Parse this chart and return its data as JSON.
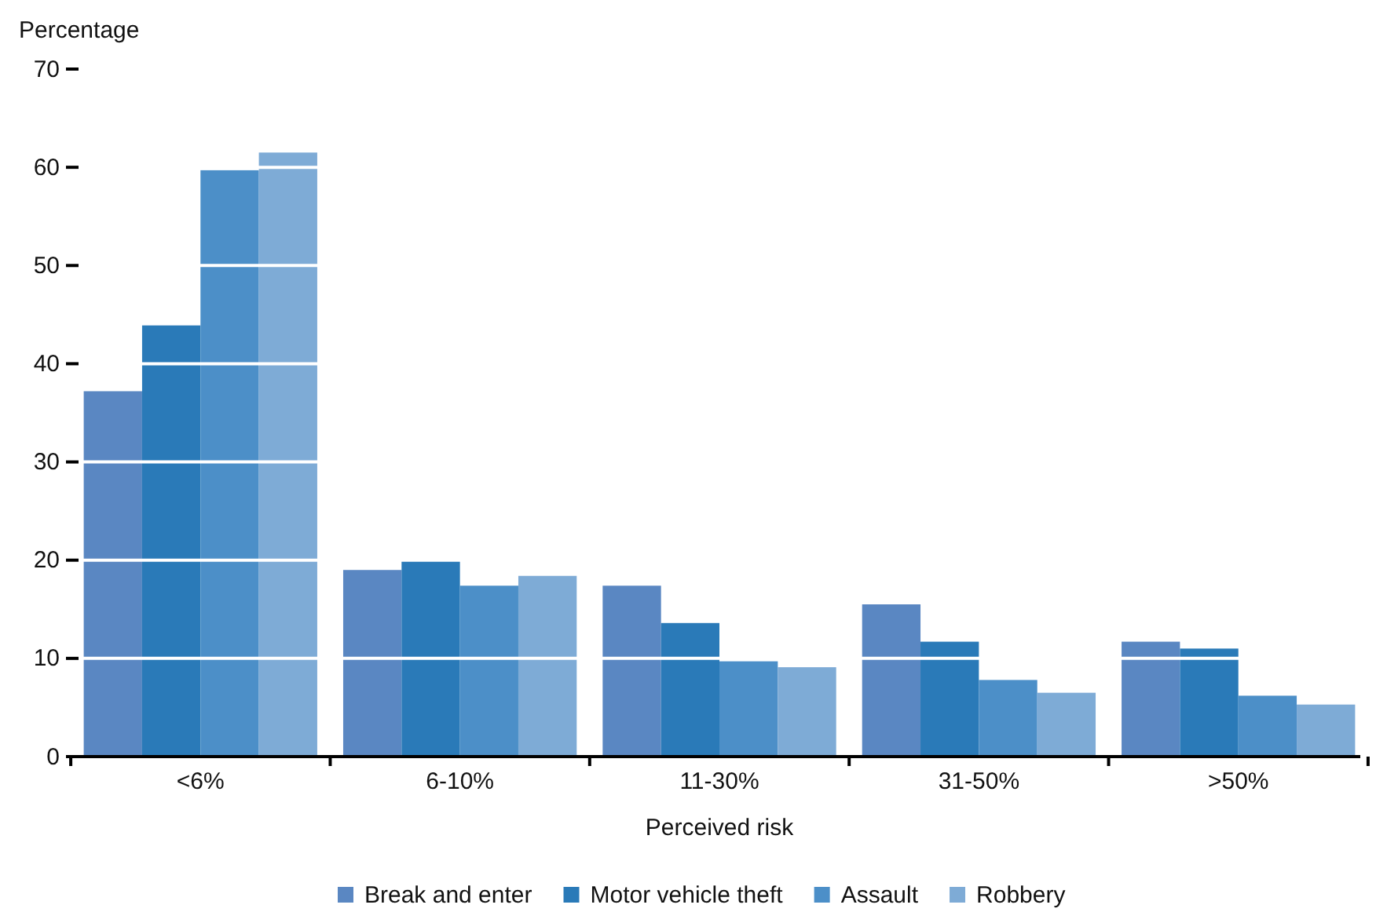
{
  "chart_data": {
    "type": "bar",
    "xlabel": "Perceived risk",
    "ylabel": "Percentage",
    "categories": [
      "<6%",
      "6-10%",
      "11-30%",
      "31-50%",
      ">50%"
    ],
    "series": [
      {
        "name": "Break and enter",
        "color": "#5a87c2",
        "values": [
          37.2,
          19.0,
          17.4,
          15.5,
          11.7
        ]
      },
      {
        "name": "Motor vehicle theft",
        "color": "#2a7ab8",
        "values": [
          43.9,
          20.1,
          13.6,
          11.7,
          11.0
        ]
      },
      {
        "name": "Assault",
        "color": "#4c8fc8",
        "values": [
          59.7,
          17.4,
          9.7,
          7.8,
          6.2
        ]
      },
      {
        "name": "Robbery",
        "color": "#7eabd6",
        "values": [
          61.5,
          18.4,
          9.1,
          6.5,
          5.3
        ]
      }
    ],
    "ylim": [
      0,
      70
    ],
    "yticks": [
      0,
      10,
      20,
      30,
      40,
      50,
      60,
      70
    ],
    "grid": "y",
    "legend": "bottom"
  }
}
